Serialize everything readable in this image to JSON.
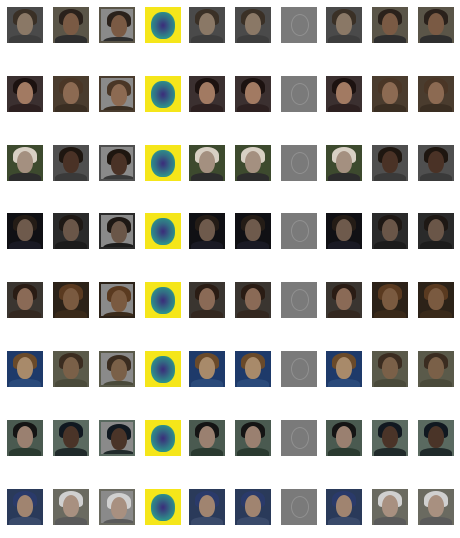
{
  "figure": {
    "rows": [
      {
        "bg": "#4a4a4a",
        "face": "#8a7866",
        "hair": "#3a3026",
        "shirt": "#3d3d3d",
        "alt_face": "#7a5a44",
        "alt_hair": "#2a211b",
        "alt_bg": "#5a5548",
        "alt_shirt": "#2e2e2e"
      },
      {
        "bg": "#3b3030",
        "face": "#a27a62",
        "hair": "#1c1210",
        "shirt": "#2d2020",
        "alt_face": "#8c6a52",
        "alt_hair": "#4a3626",
        "alt_bg": "#4a3c2e",
        "alt_shirt": "#3a2e22"
      },
      {
        "bg": "#3d4a2e",
        "face": "#a49080",
        "hair": "#d8d0c4",
        "shirt": "#2c2c2c",
        "alt_face": "#4a3226",
        "alt_hair": "#1e1610",
        "alt_bg": "#4f4f4f",
        "alt_shirt": "#3a3a3a"
      },
      {
        "bg": "#101014",
        "face": "#6e5a4c",
        "hair": "#241c16",
        "shirt": "#1a1a24",
        "alt_face": "#6a5648",
        "alt_hair": "#1e1814",
        "alt_bg": "#2a2a2a",
        "alt_shirt": "#1c1c1c"
      },
      {
        "bg": "#3a3530",
        "face": "#8a6a56",
        "hair": "#2a1c14",
        "shirt": "#342820",
        "alt_face": "#7a5a40",
        "alt_hair": "#5a3a20",
        "alt_bg": "#2c2218",
        "alt_shirt": "#3a2a1a"
      },
      {
        "bg": "#1e3a6a",
        "face": "#a88a6a",
        "hair": "#6a4a2a",
        "shirt": "#2a4a7a",
        "alt_face": "#7a6048",
        "alt_hair": "#3a2c20",
        "alt_bg": "#5a5a4a",
        "alt_shirt": "#4a4a3a"
      },
      {
        "bg": "#4a5a50",
        "face": "#9a8070",
        "hair": "#141414",
        "shirt": "#2a3a30",
        "alt_face": "#4a3428",
        "alt_hair": "#101820",
        "alt_bg": "#5a6a60",
        "alt_shirt": "#202a2a"
      },
      {
        "bg": "#2a3a5a",
        "face": "#a08470",
        "hair": "#2a3a6a",
        "shirt": "#3a4a6a",
        "alt_face": "#a89080",
        "alt_hair": "#d0d0d0",
        "alt_bg": "#6a6a60",
        "alt_shirt": "#5a5a5a"
      }
    ],
    "heatmap": {
      "low": "#3b2a7a",
      "mid": "#2e8f8a",
      "high": "#f5e61a"
    },
    "residual_color": "#7a7a7a",
    "column_types": [
      "photo",
      "photo-alt",
      "patched",
      "heatmap",
      "photo",
      "photo",
      "residual",
      "photo",
      "photo-alt",
      "photo-alt"
    ]
  }
}
